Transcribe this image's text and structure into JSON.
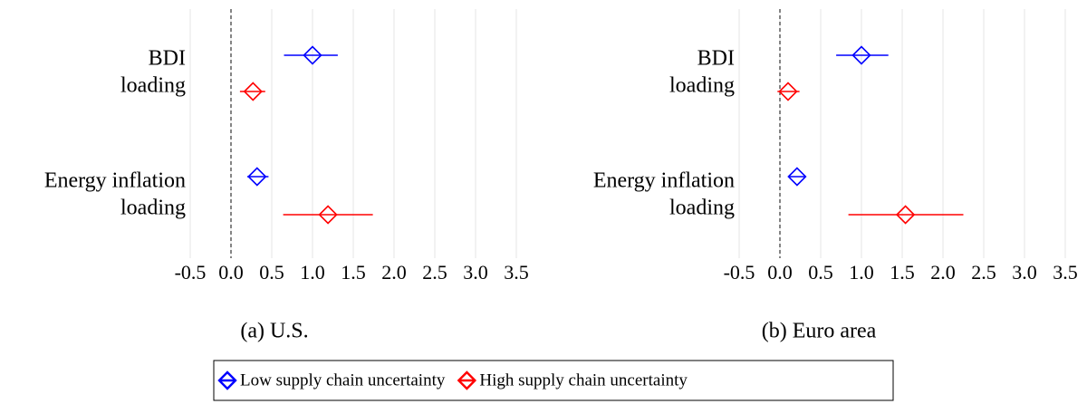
{
  "chart_data": [
    {
      "type": "errorbar",
      "caption": "(a) U.S.",
      "categories": [
        [
          "BDI",
          "loading"
        ],
        [
          "Energy inflation",
          "loading"
        ]
      ],
      "series": [
        {
          "values": [
            1.0,
            0.32
          ],
          "ci": [
            [
              0.65,
              1.31
            ],
            [
              0.2,
              0.46
            ]
          ]
        },
        {
          "values": [
            0.27,
            1.19
          ],
          "ci": [
            [
              0.11,
              0.42
            ],
            [
              0.64,
              1.74
            ]
          ]
        }
      ],
      "xlim": [
        -0.5,
        3.5
      ],
      "xticks": [
        -0.5,
        {
          "value": 0,
          "label": "0.0"
        },
        0.5,
        {
          "value": 1,
          "label": "1.0"
        },
        1.5,
        {
          "value": 2,
          "label": "2.0"
        },
        2.5,
        {
          "value": 3,
          "label": "3.0"
        },
        3.5
      ],
      "grid": true,
      "refline": 0
    },
    {
      "type": "errorbar",
      "caption": "(b) Euro area",
      "categories": [
        [
          "BDI",
          "loading"
        ],
        [
          "Energy inflation",
          "loading"
        ]
      ],
      "series": [
        {
          "values": [
            1.0,
            0.21
          ],
          "ci": [
            [
              0.69,
              1.33
            ],
            [
              0.11,
              0.31
            ]
          ]
        },
        {
          "values": [
            0.1,
            1.54
          ],
          "ci": [
            [
              -0.03,
              0.24
            ],
            [
              0.84,
              2.25
            ]
          ]
        }
      ],
      "xlim": [
        -0.5,
        3.5
      ],
      "xticks": [
        -0.5,
        {
          "value": 0,
          "label": "0.0"
        },
        0.5,
        {
          "value": 1,
          "label": "1.0"
        },
        1.5,
        {
          "value": 2,
          "label": "2.0"
        },
        2.5,
        {
          "value": 3,
          "label": "3.0"
        },
        3.5
      ],
      "grid": true,
      "refline": 0
    }
  ],
  "legend": {
    "entries": [
      {
        "name": "Low supply chain uncertainty",
        "color": "#0000ff"
      },
      {
        "name": "High supply chain uncertainty",
        "color": "#ff0000"
      }
    ]
  }
}
